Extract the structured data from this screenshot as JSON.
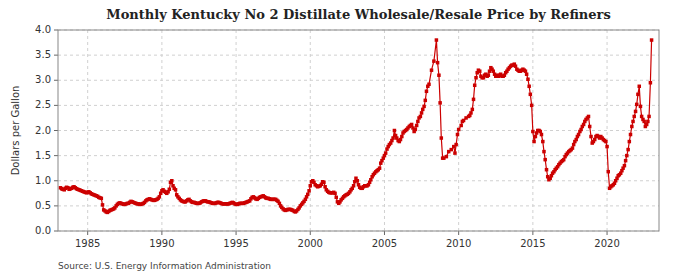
{
  "chart_data": {
    "type": "line",
    "title": "Monthly Kentucky No 2 Distillate Wholesale/Resale Price by Refiners",
    "ylabel": "Dollars per Gallon",
    "annotations": [
      "Source: U.S. Energy Information Administration"
    ],
    "xlim": [
      1983.0,
      2023.5
    ],
    "ylim": [
      0.0,
      4.0
    ],
    "xticks": [
      1985,
      1990,
      1995,
      2000,
      2005,
      2010,
      2015,
      2020
    ],
    "yticks": [
      {
        "value": 0.0,
        "label": "0.0"
      },
      0.5,
      {
        "value": 1.0,
        "label": "1.0"
      },
      1.5,
      {
        "value": 2.0,
        "label": "2.0"
      },
      2.5,
      {
        "value": 3.0,
        "label": "3.0"
      },
      3.5,
      {
        "value": 4.0,
        "label": "4.0"
      }
    ],
    "grid": true,
    "x": [
      1983.17,
      1983.25,
      1983.33,
      1983.42,
      1983.5,
      1983.58,
      1983.67,
      1983.75,
      1983.83,
      1983.92,
      1984.0,
      1984.08,
      1984.17,
      1984.25,
      1984.33,
      1984.42,
      1984.5,
      1984.58,
      1984.67,
      1984.75,
      1984.83,
      1984.92,
      1985.0,
      1985.08,
      1985.17,
      1985.25,
      1985.33,
      1985.42,
      1985.5,
      1985.58,
      1985.67,
      1985.75,
      1985.83,
      1985.92,
      1986.0,
      1986.08,
      1986.17,
      1986.25,
      1986.33,
      1986.42,
      1986.5,
      1986.58,
      1986.67,
      1986.75,
      1986.83,
      1986.92,
      1987.0,
      1987.08,
      1987.17,
      1987.25,
      1987.33,
      1987.42,
      1987.5,
      1987.58,
      1987.67,
      1987.75,
      1987.83,
      1987.92,
      1988.0,
      1988.08,
      1988.17,
      1988.25,
      1988.33,
      1988.42,
      1988.5,
      1988.58,
      1988.67,
      1988.75,
      1988.83,
      1988.92,
      1989.0,
      1989.08,
      1989.17,
      1989.25,
      1989.33,
      1989.42,
      1989.5,
      1989.58,
      1989.67,
      1989.75,
      1989.83,
      1989.92,
      1990.0,
      1990.08,
      1990.17,
      1990.25,
      1990.33,
      1990.42,
      1990.5,
      1990.58,
      1990.67,
      1990.75,
      1990.83,
      1990.92,
      1991.0,
      1991.08,
      1991.17,
      1991.25,
      1991.33,
      1991.42,
      1991.5,
      1991.58,
      1991.67,
      1991.75,
      1991.83,
      1991.92,
      1992.0,
      1992.08,
      1992.17,
      1992.25,
      1992.33,
      1992.42,
      1992.5,
      1992.58,
      1992.67,
      1992.75,
      1992.83,
      1992.92,
      1993.0,
      1993.08,
      1993.17,
      1993.25,
      1993.33,
      1993.42,
      1993.5,
      1993.58,
      1993.67,
      1993.75,
      1993.83,
      1993.92,
      1994.0,
      1994.08,
      1994.17,
      1994.25,
      1994.33,
      1994.42,
      1994.5,
      1994.58,
      1994.67,
      1994.75,
      1994.83,
      1994.92,
      1995.0,
      1995.08,
      1995.17,
      1995.25,
      1995.33,
      1995.42,
      1995.5,
      1995.58,
      1995.67,
      1995.75,
      1995.83,
      1995.92,
      1996.0,
      1996.08,
      1996.17,
      1996.25,
      1996.33,
      1996.42,
      1996.5,
      1996.58,
      1996.67,
      1996.75,
      1996.83,
      1996.92,
      1997.0,
      1997.08,
      1997.17,
      1997.25,
      1997.33,
      1997.42,
      1997.5,
      1997.58,
      1997.67,
      1997.75,
      1997.83,
      1997.92,
      1998.0,
      1998.08,
      1998.17,
      1998.25,
      1998.33,
      1998.42,
      1998.5,
      1998.58,
      1998.67,
      1998.75,
      1998.83,
      1998.92,
      1999.0,
      1999.08,
      1999.17,
      1999.25,
      1999.33,
      1999.42,
      1999.5,
      1999.58,
      1999.67,
      1999.75,
      1999.83,
      1999.92,
      2000.0,
      2000.08,
      2000.17,
      2000.25,
      2000.33,
      2000.42,
      2000.5,
      2000.58,
      2000.67,
      2000.75,
      2000.83,
      2000.92,
      2001.0,
      2001.08,
      2001.17,
      2001.25,
      2001.33,
      2001.42,
      2001.5,
      2001.58,
      2001.67,
      2001.75,
      2001.83,
      2001.92,
      2002.0,
      2002.08,
      2002.17,
      2002.25,
      2002.33,
      2002.42,
      2002.5,
      2002.58,
      2002.67,
      2002.75,
      2002.83,
      2002.92,
      2003.0,
      2003.08,
      2003.17,
      2003.25,
      2003.33,
      2003.42,
      2003.5,
      2003.58,
      2003.67,
      2003.75,
      2003.83,
      2003.92,
      2004.0,
      2004.08,
      2004.17,
      2004.25,
      2004.33,
      2004.42,
      2004.5,
      2004.58,
      2004.67,
      2004.75,
      2004.83,
      2004.92,
      2005.0,
      2005.08,
      2005.17,
      2005.25,
      2005.33,
      2005.42,
      2005.5,
      2005.58,
      2005.67,
      2005.75,
      2005.83,
      2005.92,
      2006.0,
      2006.08,
      2006.17,
      2006.25,
      2006.33,
      2006.42,
      2006.5,
      2006.58,
      2006.67,
      2006.75,
      2006.83,
      2006.92,
      2007.0,
      2007.08,
      2007.17,
      2007.25,
      2007.33,
      2007.42,
      2007.5,
      2007.58,
      2007.67,
      2007.75,
      2007.83,
      2007.92,
      2008.0,
      2008.17,
      2008.33,
      2008.5,
      2008.58,
      2008.67,
      2008.75,
      2008.83,
      2008.92,
      2009.0,
      2009.17,
      2009.33,
      2009.5,
      2009.67,
      2009.75,
      2009.83,
      2009.92,
      2010.0,
      2010.17,
      2010.25,
      2010.33,
      2010.5,
      2010.67,
      2010.75,
      2010.83,
      2010.92,
      2011.0,
      2011.08,
      2011.17,
      2011.25,
      2011.33,
      2011.42,
      2011.5,
      2011.58,
      2011.67,
      2011.75,
      2011.83,
      2011.92,
      2012.0,
      2012.08,
      2012.17,
      2012.25,
      2012.33,
      2012.42,
      2012.5,
      2012.58,
      2012.67,
      2012.75,
      2012.83,
      2012.92,
      2013.0,
      2013.08,
      2013.17,
      2013.25,
      2013.33,
      2013.42,
      2013.5,
      2013.58,
      2013.67,
      2013.75,
      2013.83,
      2013.92,
      2014.0,
      2014.08,
      2014.17,
      2014.25,
      2014.33,
      2014.42,
      2014.5,
      2014.58,
      2014.67,
      2014.75,
      2014.83,
      2014.92,
      2015.0,
      2015.08,
      2015.17,
      2015.25,
      2015.33,
      2015.42,
      2015.5,
      2015.58,
      2015.67,
      2015.75,
      2015.83,
      2015.92,
      2016.0,
      2016.08,
      2016.17,
      2016.25,
      2016.33,
      2016.42,
      2016.5,
      2016.58,
      2016.67,
      2016.75,
      2016.83,
      2016.92,
      2017.0,
      2017.08,
      2017.17,
      2017.25,
      2017.33,
      2017.42,
      2017.5,
      2017.58,
      2017.67,
      2017.75,
      2017.83,
      2017.92,
      2018.0,
      2018.08,
      2018.17,
      2018.25,
      2018.33,
      2018.42,
      2018.5,
      2018.58,
      2018.67,
      2018.75,
      2018.83,
      2018.92,
      2019.0,
      2019.08,
      2019.17,
      2019.25,
      2019.33,
      2019.42,
      2019.5,
      2019.58,
      2019.67,
      2019.75,
      2019.83,
      2019.92,
      2020.0,
      2020.08,
      2020.17,
      2020.25,
      2020.33,
      2020.42,
      2020.5,
      2020.58,
      2020.67,
      2020.75,
      2020.83,
      2020.92,
      2021.0,
      2021.08,
      2021.17,
      2021.25,
      2021.33,
      2021.42,
      2021.5,
      2021.58,
      2021.67,
      2021.75,
      2021.83,
      2021.92,
      2022.0,
      2022.08,
      2022.17,
      2022.25,
      2022.33,
      2022.42,
      2022.5,
      2022.58,
      2022.67,
      2022.75,
      2022.83,
      2022.92,
      2023.0
    ],
    "series": [
      {
        "color": "#cc0000",
        "marker": "square",
        "values": [
          0.86,
          0.84,
          0.83,
          0.82,
          0.85,
          0.87,
          0.86,
          0.83,
          0.84,
          0.85,
          0.87,
          0.88,
          0.86,
          0.84,
          0.83,
          0.82,
          0.81,
          0.8,
          0.79,
          0.78,
          0.77,
          0.76,
          0.77,
          0.78,
          0.76,
          0.74,
          0.73,
          0.72,
          0.71,
          0.7,
          0.69,
          0.67,
          0.66,
          0.65,
          0.52,
          0.42,
          0.4,
          0.38,
          0.37,
          0.39,
          0.41,
          0.42,
          0.43,
          0.44,
          0.46,
          0.5,
          0.53,
          0.55,
          0.56,
          0.55,
          0.54,
          0.53,
          0.53,
          0.54,
          0.55,
          0.55,
          0.57,
          0.59,
          0.58,
          0.57,
          0.56,
          0.55,
          0.54,
          0.54,
          0.53,
          0.53,
          0.54,
          0.55,
          0.57,
          0.6,
          0.62,
          0.63,
          0.64,
          0.63,
          0.62,
          0.61,
          0.61,
          0.62,
          0.63,
          0.65,
          0.68,
          0.75,
          0.8,
          0.82,
          0.79,
          0.77,
          0.75,
          0.78,
          0.83,
          0.97,
          1.0,
          0.9,
          0.85,
          0.82,
          0.72,
          0.68,
          0.65,
          0.62,
          0.6,
          0.59,
          0.58,
          0.58,
          0.6,
          0.62,
          0.63,
          0.6,
          0.58,
          0.57,
          0.57,
          0.56,
          0.55,
          0.55,
          0.55,
          0.56,
          0.58,
          0.59,
          0.6,
          0.6,
          0.59,
          0.58,
          0.58,
          0.57,
          0.56,
          0.55,
          0.55,
          0.55,
          0.56,
          0.57,
          0.57,
          0.56,
          0.55,
          0.54,
          0.54,
          0.54,
          0.54,
          0.54,
          0.54,
          0.55,
          0.56,
          0.57,
          0.56,
          0.54,
          0.53,
          0.53,
          0.54,
          0.55,
          0.55,
          0.55,
          0.55,
          0.56,
          0.57,
          0.58,
          0.59,
          0.6,
          0.64,
          0.67,
          0.68,
          0.66,
          0.64,
          0.63,
          0.65,
          0.67,
          0.68,
          0.69,
          0.7,
          0.68,
          0.66,
          0.65,
          0.65,
          0.64,
          0.63,
          0.63,
          0.63,
          0.63,
          0.63,
          0.61,
          0.59,
          0.55,
          0.5,
          0.47,
          0.44,
          0.42,
          0.41,
          0.42,
          0.43,
          0.43,
          0.43,
          0.42,
          0.41,
          0.39,
          0.38,
          0.4,
          0.43,
          0.46,
          0.5,
          0.53,
          0.56,
          0.59,
          0.63,
          0.68,
          0.73,
          0.8,
          0.9,
          0.98,
          1.0,
          0.97,
          0.92,
          0.9,
          0.88,
          0.89,
          0.9,
          0.93,
          0.98,
          0.97,
          0.88,
          0.82,
          0.79,
          0.77,
          0.76,
          0.76,
          0.76,
          0.77,
          0.75,
          0.67,
          0.58,
          0.55,
          0.58,
          0.62,
          0.65,
          0.68,
          0.7,
          0.72,
          0.73,
          0.75,
          0.78,
          0.82,
          0.85,
          0.9,
          0.98,
          1.05,
          1.0,
          0.92,
          0.87,
          0.85,
          0.85,
          0.88,
          0.9,
          0.9,
          0.9,
          0.92,
          0.97,
          1.02,
          1.08,
          1.12,
          1.15,
          1.18,
          1.2,
          1.22,
          1.25,
          1.35,
          1.4,
          1.45,
          1.5,
          1.55,
          1.63,
          1.68,
          1.72,
          1.75,
          1.8,
          1.85,
          2.0,
          1.9,
          1.85,
          1.8,
          1.78,
          1.82,
          1.88,
          1.95,
          1.98,
          2.0,
          2.02,
          2.05,
          2.08,
          2.1,
          2.12,
          2.05,
          1.98,
          2.02,
          2.1,
          2.18,
          2.25,
          2.28,
          2.35,
          2.42,
          2.48,
          2.6,
          2.78,
          2.88,
          2.92,
          3.2,
          3.38,
          3.8,
          3.35,
          3.1,
          2.55,
          1.85,
          1.45,
          1.45,
          1.48,
          1.58,
          1.62,
          1.68,
          1.55,
          1.72,
          1.92,
          2.02,
          2.1,
          2.18,
          2.2,
          2.25,
          2.28,
          2.3,
          2.35,
          2.42,
          2.62,
          2.9,
          3.05,
          3.15,
          3.2,
          3.18,
          3.08,
          3.05,
          3.05,
          3.1,
          3.12,
          3.08,
          3.1,
          3.18,
          3.25,
          3.22,
          3.18,
          3.12,
          3.08,
          3.1,
          3.08,
          3.1,
          3.12,
          3.08,
          3.08,
          3.1,
          3.15,
          3.18,
          3.22,
          3.25,
          3.28,
          3.3,
          3.3,
          3.32,
          3.28,
          3.22,
          3.2,
          3.18,
          3.18,
          3.2,
          3.22,
          3.2,
          3.18,
          3.12,
          3.02,
          2.88,
          2.72,
          2.5,
          1.98,
          1.78,
          1.88,
          1.95,
          2.0,
          2.0,
          1.98,
          1.92,
          1.78,
          1.58,
          1.42,
          1.22,
          1.08,
          1.02,
          1.05,
          1.1,
          1.15,
          1.18,
          1.22,
          1.25,
          1.28,
          1.32,
          1.35,
          1.38,
          1.4,
          1.42,
          1.48,
          1.52,
          1.55,
          1.58,
          1.6,
          1.62,
          1.65,
          1.72,
          1.78,
          1.82,
          1.88,
          1.92,
          1.98,
          2.02,
          2.08,
          2.12,
          2.18,
          2.22,
          2.25,
          2.28,
          2.08,
          1.88,
          1.75,
          1.78,
          1.82,
          1.88,
          1.9,
          1.88,
          1.85,
          1.88,
          1.85,
          1.82,
          1.8,
          1.78,
          1.68,
          1.18,
          0.85,
          0.88,
          0.9,
          0.92,
          0.95,
          1.0,
          1.05,
          1.1,
          1.12,
          1.15,
          1.2,
          1.25,
          1.3,
          1.4,
          1.5,
          1.62,
          1.78,
          1.92,
          2.08,
          2.18,
          2.28,
          2.38,
          2.52,
          2.72,
          2.88,
          2.48,
          2.28,
          2.22,
          2.18,
          2.08,
          2.12,
          2.18,
          2.28,
          2.95,
          3.8
        ]
      }
    ]
  }
}
